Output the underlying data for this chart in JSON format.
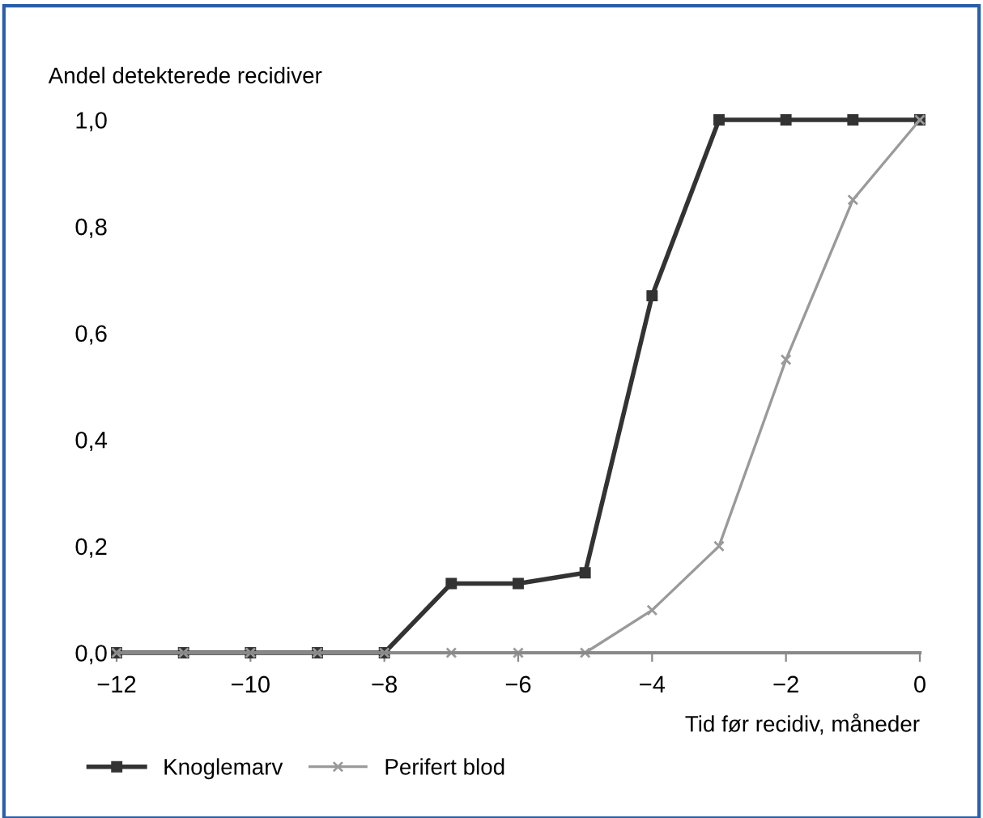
{
  "chart_data": {
    "type": "line",
    "ylabel": "Andel detekterede recidiver",
    "xlabel": "Tid før recidiv, måneder",
    "x": [
      -12,
      -11,
      -10,
      -9,
      -8,
      -7,
      -6,
      -5,
      -4,
      -3,
      -2,
      -1,
      0
    ],
    "series": [
      {
        "name": "Knoglemarv",
        "color": "#333333",
        "marker": "square",
        "values": [
          0,
          0,
          0,
          0,
          0,
          0.13,
          0.13,
          0.15,
          0.67,
          1.0,
          1.0,
          1.0,
          1.0
        ]
      },
      {
        "name": "Perifert blod",
        "color": "#9a9a9a",
        "marker": "cross",
        "values": [
          0,
          0,
          0,
          0,
          0,
          0,
          0,
          0,
          0.08,
          0.2,
          0.55,
          0.85,
          1.0
        ]
      }
    ],
    "xlim": [
      -12,
      0
    ],
    "ylim": [
      0,
      1
    ],
    "xticks": [
      {
        "value": -12,
        "label": "−12"
      },
      {
        "value": -10,
        "label": "−10"
      },
      {
        "value": -8,
        "label": "−8"
      },
      {
        "value": -6,
        "label": "−6"
      },
      {
        "value": -4,
        "label": "−4"
      },
      {
        "value": -2,
        "label": "−2"
      },
      0
    ],
    "yticks": [
      {
        "value": 0,
        "label": "0,0"
      },
      {
        "value": 0.2,
        "label": "0,2"
      },
      {
        "value": 0.4,
        "label": "0,4"
      },
      {
        "value": 0.6,
        "label": "0,6"
      },
      {
        "value": 0.8,
        "label": "0,8"
      },
      {
        "value": 1.0,
        "label": "1,0"
      }
    ],
    "grid": false,
    "legend": "bottom left",
    "line_style": "solid"
  }
}
